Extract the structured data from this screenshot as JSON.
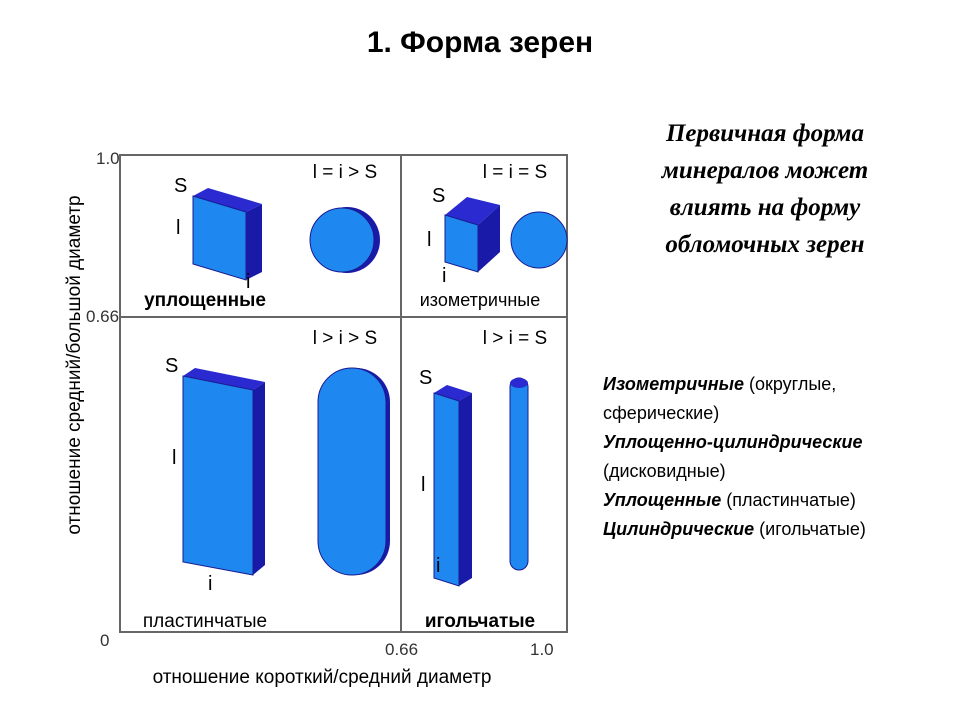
{
  "title": "1. Форма зерен",
  "note": [
    "Первичная форма",
    "минералов может",
    "влиять на форму",
    "обломочных зерен"
  ],
  "classes": [
    {
      "term": "Изометричные",
      "desc": " (округлые, сферические)"
    },
    {
      "term": "Уплощенно-цилиндрические",
      "desc": " (дисковидные)"
    },
    {
      "term": "Уплощенные",
      "desc": " (пластинчатые)"
    },
    {
      "term": "Цилиндрические",
      "desc": " (игольчатые)"
    }
  ],
  "diagram": {
    "y_label": "отношение средний/большой диаметр",
    "x_label": "отношение короткий/средний диаметр",
    "y_ticks": [
      "1.0",
      "0.66",
      "0"
    ],
    "x_ticks": [
      "0.66",
      "1.0"
    ],
    "quadrants": [
      {
        "relation": "l = i > S",
        "name": "уплощенные",
        "s": "S",
        "l": "l",
        "i": "i"
      },
      {
        "relation": "l = i = S",
        "name": "изометричные",
        "s": "S",
        "l": "l",
        "i": "i"
      },
      {
        "relation": "l > i > S",
        "name": "пластинчатые",
        "s": "S",
        "l": "l",
        "i": "i"
      },
      {
        "relation": "l > i = S",
        "name": "игольчатые",
        "s": "S",
        "l": "l",
        "i": "i"
      }
    ]
  }
}
